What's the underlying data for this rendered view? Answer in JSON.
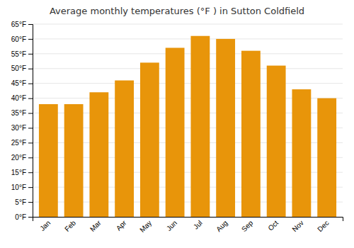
{
  "chart_data": {
    "type": "bar",
    "title": "Average monthly temperatures (°F ) in Sutton Coldfield",
    "categories": [
      "Jan",
      "Feb",
      "Mar",
      "Apr",
      "May",
      "Jun",
      "Jul",
      "Aug",
      "Sep",
      "Oct",
      "Nov",
      "Dec"
    ],
    "values": [
      38,
      38,
      42,
      46,
      52,
      57,
      61,
      60,
      56,
      51,
      43,
      40
    ],
    "color": "#E8950A",
    "ylim": [
      0,
      65
    ],
    "yticks": [
      {
        "value": 0,
        "label": "0°F"
      },
      {
        "value": 5,
        "label": "5°F"
      },
      {
        "value": 10,
        "label": "10°F"
      },
      {
        "value": 15,
        "label": "15°F"
      },
      {
        "value": 20,
        "label": "20°F"
      },
      {
        "value": 25,
        "label": "25°F"
      },
      {
        "value": 30,
        "label": "30°F"
      },
      {
        "value": 35,
        "label": "35°F"
      },
      {
        "value": 40,
        "label": "40°F"
      },
      {
        "value": 45,
        "label": "45°F"
      },
      {
        "value": 50,
        "label": "50°F"
      },
      {
        "value": 55,
        "label": "55°F"
      },
      {
        "value": 60,
        "label": "60°F"
      },
      {
        "value": 65,
        "label": "65°F"
      }
    ],
    "grid": true
  }
}
